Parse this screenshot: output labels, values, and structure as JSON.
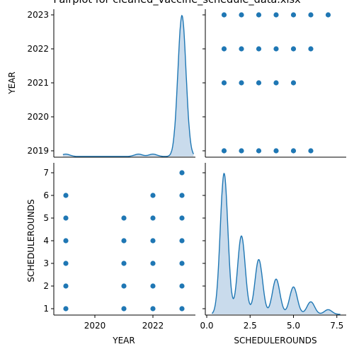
{
  "chart_data": {
    "type": "scatter",
    "title": "Pairplot for cleaned_vaccine_schedule_data.xlsx",
    "variables": [
      "YEAR",
      "SCHEDULEROUNDS"
    ],
    "xlabels": [
      "YEAR",
      "SCHEDULEROUNDS"
    ],
    "ylabels": [
      "YEAR",
      "SCHEDULEROUNDS"
    ],
    "year_ticks": [
      "2019",
      "2020",
      "2021",
      "2022",
      "2023"
    ],
    "year_x_ticks": [
      "2020",
      "2022"
    ],
    "rounds_ticks": [
      "1",
      "2",
      "3",
      "4",
      "5",
      "6",
      "7"
    ],
    "rounds_x_ticks": [
      "0.0",
      "2.5",
      "5.0",
      "7.5"
    ],
    "scatter_year_vs_rounds": [
      {
        "x": 2019,
        "y": 1
      },
      {
        "x": 2019,
        "y": 2
      },
      {
        "x": 2019,
        "y": 3
      },
      {
        "x": 2019,
        "y": 4
      },
      {
        "x": 2019,
        "y": 5
      },
      {
        "x": 2019,
        "y": 6
      },
      {
        "x": 2021,
        "y": 1
      },
      {
        "x": 2021,
        "y": 2
      },
      {
        "x": 2021,
        "y": 3
      },
      {
        "x": 2021,
        "y": 4
      },
      {
        "x": 2021,
        "y": 5
      },
      {
        "x": 2022,
        "y": 1
      },
      {
        "x": 2022,
        "y": 2
      },
      {
        "x": 2022,
        "y": 3
      },
      {
        "x": 2022,
        "y": 4
      },
      {
        "x": 2022,
        "y": 5
      },
      {
        "x": 2022,
        "y": 6
      },
      {
        "x": 2023,
        "y": 1
      },
      {
        "x": 2023,
        "y": 2
      },
      {
        "x": 2023,
        "y": 3
      },
      {
        "x": 2023,
        "y": 4
      },
      {
        "x": 2023,
        "y": 5
      },
      {
        "x": 2023,
        "y": 6
      },
      {
        "x": 2023,
        "y": 7
      }
    ],
    "colors": {
      "points": "#1f77b4",
      "kde_line": "#1f77b4",
      "kde_fill": "#c3d7ea",
      "axes": "#000000"
    }
  }
}
